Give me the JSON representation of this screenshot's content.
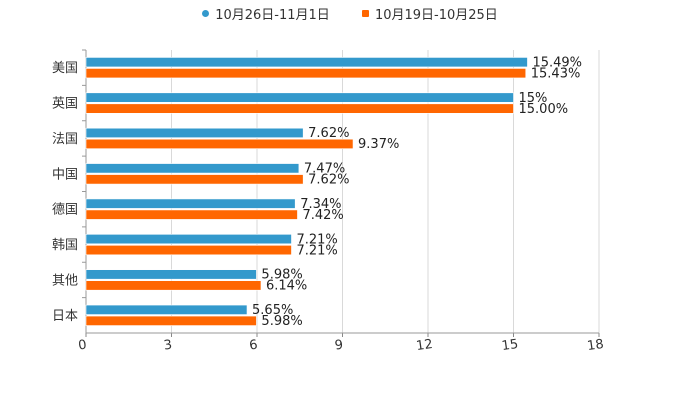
{
  "chart_data": {
    "type": "bar",
    "orientation": "horizontal",
    "categories": [
      "美国",
      "英国",
      "法国",
      "中国",
      "德国",
      "韩国",
      "其他",
      "日本"
    ],
    "series": [
      {
        "name": "10月26日-11月1日",
        "color": "#3399cc",
        "values": [
          15.49,
          15,
          7.62,
          7.47,
          7.34,
          7.21,
          5.98,
          5.65
        ],
        "labels": [
          "15.49%",
          "15%",
          "7.62%",
          "7.47%",
          "7.34%",
          "7.21%",
          "5.98%",
          "5.65%"
        ]
      },
      {
        "name": "10月19日-10月25日",
        "color": "#ff6600",
        "values": [
          15.43,
          15.0,
          9.37,
          7.62,
          7.42,
          7.21,
          6.14,
          5.98
        ],
        "labels": [
          "15.43%",
          "15.00%",
          "9.37%",
          "7.62%",
          "7.42%",
          "7.21%",
          "6.14%",
          "5.98%"
        ]
      }
    ],
    "xlim": [
      0,
      18
    ],
    "xticks": [
      0,
      3,
      6,
      9,
      12,
      15,
      18
    ],
    "grid": true,
    "legend_position": "top-center",
    "title": "",
    "xlabel": "",
    "ylabel": ""
  }
}
